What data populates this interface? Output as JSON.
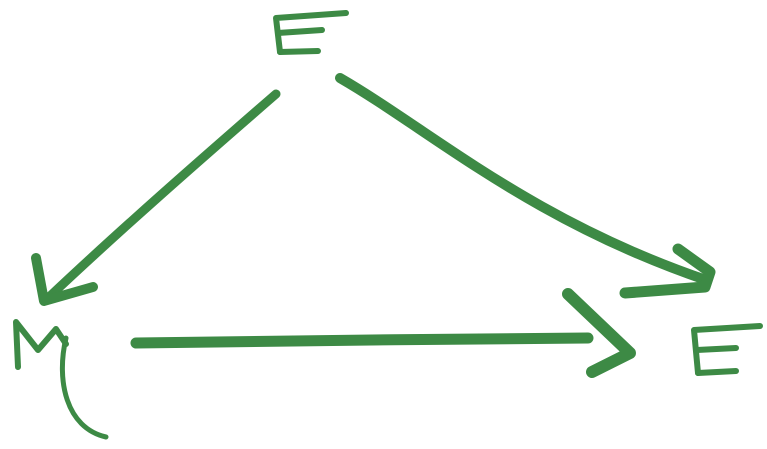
{
  "diagram": {
    "ink_color": "#3d8a45",
    "nodes": [
      {
        "id": "top",
        "label": "E"
      },
      {
        "id": "left",
        "label": "M"
      },
      {
        "id": "right",
        "label": "E"
      }
    ],
    "edges": [
      {
        "from": "top",
        "to": "left"
      },
      {
        "from": "top",
        "to": "right"
      },
      {
        "from": "left",
        "to": "right"
      }
    ]
  }
}
